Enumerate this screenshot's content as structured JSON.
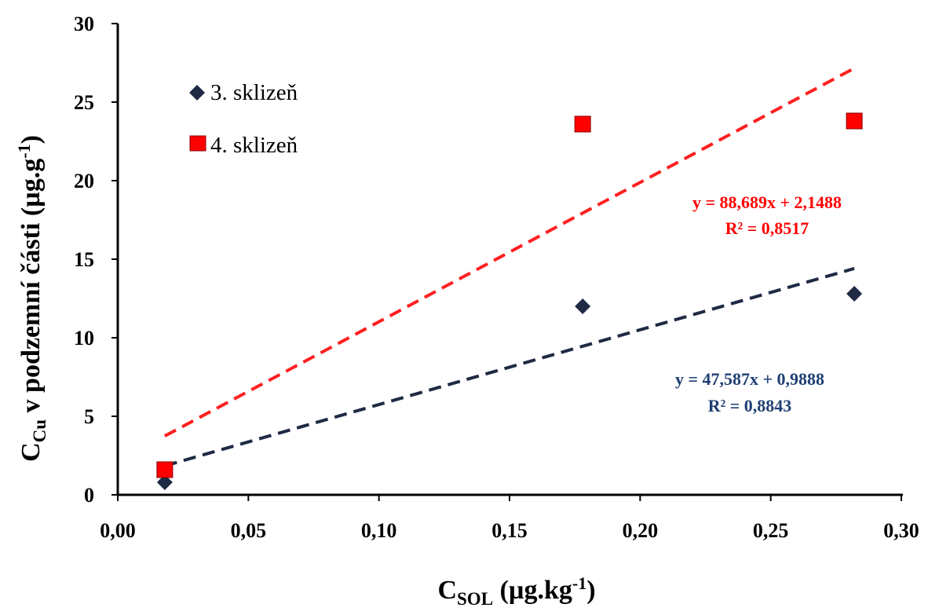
{
  "chart_data": {
    "type": "scatter",
    "xlabel": {
      "main": "C",
      "sub": "SOL",
      "rest": " (µg.kg",
      "sup": "-1",
      "close": ")"
    },
    "ylabel": {
      "main": "C",
      "sub": "Cu",
      "rest": " v podzemní části (µg.g",
      "sup": "-1",
      "close": ")"
    },
    "xlim": [
      0,
      0.3
    ],
    "ylim": [
      0,
      30
    ],
    "x_ticks": [
      "0,00",
      "0,05",
      "0,10",
      "0,15",
      "0,20",
      "0,25",
      "0,30"
    ],
    "y_ticks": [
      "0",
      "5",
      "10",
      "15",
      "20",
      "25",
      "30"
    ],
    "x_tick_values": [
      0,
      0.05,
      0.1,
      0.15,
      0.2,
      0.25,
      0.3
    ],
    "y_tick_values": [
      0,
      5,
      10,
      15,
      20,
      25,
      30
    ],
    "grid": false,
    "legend_position": "top-left",
    "series": [
      {
        "name": "3. sklizeň",
        "marker": "diamond",
        "color": "#1f2a44",
        "x": [
          0.018,
          0.178,
          0.282
        ],
        "y": [
          0.8,
          12.0,
          12.8
        ],
        "trendline": {
          "slope": 47.587,
          "intercept": 0.9888,
          "color": "#1f2a44",
          "equation": "y = 47,587x + 0,9888",
          "r2": "R² = 0,8843",
          "label_color": "#1f3f73"
        }
      },
      {
        "name": "4. sklizeň",
        "marker": "square",
        "color": "#ff0000",
        "x": [
          0.018,
          0.178,
          0.282
        ],
        "y": [
          1.6,
          23.6,
          23.8
        ],
        "trendline": {
          "slope": 88.689,
          "intercept": 2.1488,
          "color": "#ff2020",
          "equation": "y = 88,689x + 2,1488",
          "r2": "R² = 0,8517",
          "label_color": "#ff0000"
        }
      }
    ]
  }
}
